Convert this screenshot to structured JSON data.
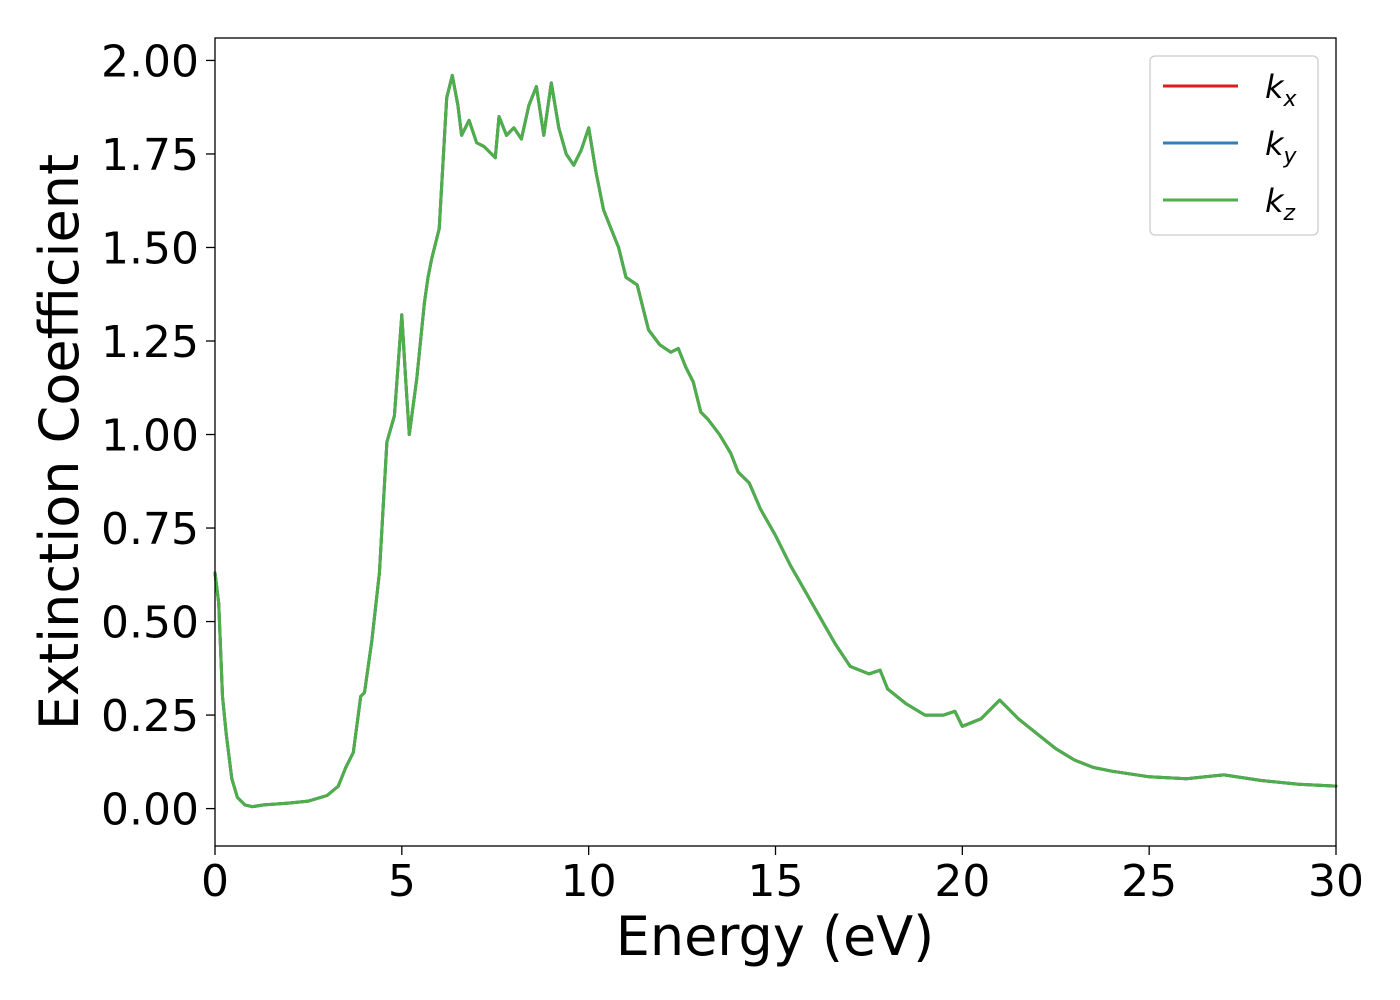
{
  "chart_data": {
    "type": "line",
    "title": "",
    "xlabel": "Energy (eV)",
    "ylabel": "Extinction Coefficient",
    "xlim": [
      0,
      30
    ],
    "ylim": [
      -0.1,
      2.06
    ],
    "x_ticks": [
      0,
      5,
      10,
      15,
      20,
      25,
      30
    ],
    "x_tick_labels": [
      "0",
      "5",
      "10",
      "15",
      "20",
      "25",
      "30"
    ],
    "y_ticks": [
      0.0,
      0.25,
      0.5,
      0.75,
      1.0,
      1.25,
      1.5,
      1.75,
      2.0
    ],
    "y_tick_labels": [
      "0.00",
      "0.25",
      "0.50",
      "0.75",
      "1.00",
      "1.25",
      "1.50",
      "1.75",
      "2.00"
    ],
    "grid": false,
    "legend_position": "top-right",
    "x": [
      0.0,
      0.1,
      0.2,
      0.3,
      0.45,
      0.6,
      0.8,
      1.0,
      1.3,
      1.6,
      2.0,
      2.5,
      3.0,
      3.3,
      3.5,
      3.7,
      3.9,
      4.0,
      4.2,
      4.4,
      4.6,
      4.8,
      5.0,
      5.1,
      5.2,
      5.4,
      5.6,
      5.7,
      5.8,
      6.0,
      6.2,
      6.35,
      6.5,
      6.6,
      6.8,
      7.0,
      7.2,
      7.5,
      7.6,
      7.8,
      8.0,
      8.2,
      8.4,
      8.6,
      8.8,
      9.0,
      9.2,
      9.4,
      9.6,
      9.8,
      10.0,
      10.2,
      10.4,
      10.6,
      10.8,
      11.0,
      11.3,
      11.6,
      11.9,
      12.2,
      12.4,
      12.6,
      12.8,
      13.0,
      13.2,
      13.5,
      13.8,
      14.0,
      14.3,
      14.6,
      15.0,
      15.4,
      15.8,
      16.2,
      16.6,
      17.0,
      17.5,
      17.8,
      18.0,
      18.5,
      19.0,
      19.5,
      19.8,
      20.0,
      20.5,
      21.0,
      21.5,
      22.0,
      22.5,
      23.0,
      23.5,
      24.0,
      25.0,
      26.0,
      26.5,
      27.0,
      28.0,
      29.0,
      30.0
    ],
    "series": [
      {
        "name": "k_x",
        "color": "#e41a1c",
        "values": [
          0.63,
          0.55,
          0.3,
          0.2,
          0.08,
          0.03,
          0.01,
          0.005,
          0.01,
          0.012,
          0.015,
          0.02,
          0.035,
          0.06,
          0.11,
          0.15,
          0.3,
          0.31,
          0.45,
          0.63,
          0.98,
          1.05,
          1.32,
          1.15,
          1.0,
          1.15,
          1.35,
          1.42,
          1.47,
          1.55,
          1.9,
          1.96,
          1.88,
          1.8,
          1.84,
          1.78,
          1.77,
          1.74,
          1.85,
          1.8,
          1.82,
          1.79,
          1.88,
          1.93,
          1.8,
          1.94,
          1.82,
          1.75,
          1.72,
          1.76,
          1.82,
          1.7,
          1.6,
          1.55,
          1.5,
          1.42,
          1.4,
          1.28,
          1.24,
          1.22,
          1.23,
          1.18,
          1.14,
          1.06,
          1.04,
          1.0,
          0.95,
          0.9,
          0.87,
          0.8,
          0.73,
          0.65,
          0.58,
          0.51,
          0.44,
          0.38,
          0.36,
          0.37,
          0.32,
          0.28,
          0.25,
          0.25,
          0.26,
          0.22,
          0.24,
          0.29,
          0.24,
          0.2,
          0.16,
          0.13,
          0.11,
          0.1,
          0.085,
          0.08,
          0.085,
          0.09,
          0.075,
          0.065,
          0.06
        ]
      },
      {
        "name": "k_y",
        "color": "#377eb8",
        "values": [
          0.63,
          0.55,
          0.3,
          0.2,
          0.08,
          0.03,
          0.01,
          0.005,
          0.01,
          0.012,
          0.015,
          0.02,
          0.035,
          0.06,
          0.11,
          0.15,
          0.3,
          0.31,
          0.45,
          0.63,
          0.98,
          1.05,
          1.32,
          1.15,
          1.0,
          1.15,
          1.35,
          1.42,
          1.47,
          1.55,
          1.9,
          1.96,
          1.88,
          1.8,
          1.84,
          1.78,
          1.77,
          1.74,
          1.85,
          1.8,
          1.82,
          1.79,
          1.88,
          1.93,
          1.8,
          1.94,
          1.82,
          1.75,
          1.72,
          1.76,
          1.82,
          1.7,
          1.6,
          1.55,
          1.5,
          1.42,
          1.4,
          1.28,
          1.24,
          1.22,
          1.23,
          1.18,
          1.14,
          1.06,
          1.04,
          1.0,
          0.95,
          0.9,
          0.87,
          0.8,
          0.73,
          0.65,
          0.58,
          0.51,
          0.44,
          0.38,
          0.36,
          0.37,
          0.32,
          0.28,
          0.25,
          0.25,
          0.26,
          0.22,
          0.24,
          0.29,
          0.24,
          0.2,
          0.16,
          0.13,
          0.11,
          0.1,
          0.085,
          0.08,
          0.085,
          0.09,
          0.075,
          0.065,
          0.06
        ]
      },
      {
        "name": "k_z",
        "color": "#4daf4a",
        "values": [
          0.63,
          0.55,
          0.3,
          0.2,
          0.08,
          0.03,
          0.01,
          0.005,
          0.01,
          0.012,
          0.015,
          0.02,
          0.035,
          0.06,
          0.11,
          0.15,
          0.3,
          0.31,
          0.45,
          0.63,
          0.98,
          1.05,
          1.32,
          1.15,
          1.0,
          1.15,
          1.35,
          1.42,
          1.47,
          1.55,
          1.9,
          1.96,
          1.88,
          1.8,
          1.84,
          1.78,
          1.77,
          1.74,
          1.85,
          1.8,
          1.82,
          1.79,
          1.88,
          1.93,
          1.8,
          1.94,
          1.82,
          1.75,
          1.72,
          1.76,
          1.82,
          1.7,
          1.6,
          1.55,
          1.5,
          1.42,
          1.4,
          1.28,
          1.24,
          1.22,
          1.23,
          1.18,
          1.14,
          1.06,
          1.04,
          1.0,
          0.95,
          0.9,
          0.87,
          0.8,
          0.73,
          0.65,
          0.58,
          0.51,
          0.44,
          0.38,
          0.36,
          0.37,
          0.32,
          0.28,
          0.25,
          0.25,
          0.26,
          0.22,
          0.24,
          0.29,
          0.24,
          0.2,
          0.16,
          0.13,
          0.11,
          0.1,
          0.085,
          0.08,
          0.085,
          0.09,
          0.075,
          0.065,
          0.06
        ]
      }
    ],
    "legend": [
      {
        "base": "k",
        "sub": "x",
        "color": "#e41a1c"
      },
      {
        "base": "k",
        "sub": "y",
        "color": "#377eb8"
      },
      {
        "base": "k",
        "sub": "z",
        "color": "#4daf4a"
      }
    ]
  }
}
